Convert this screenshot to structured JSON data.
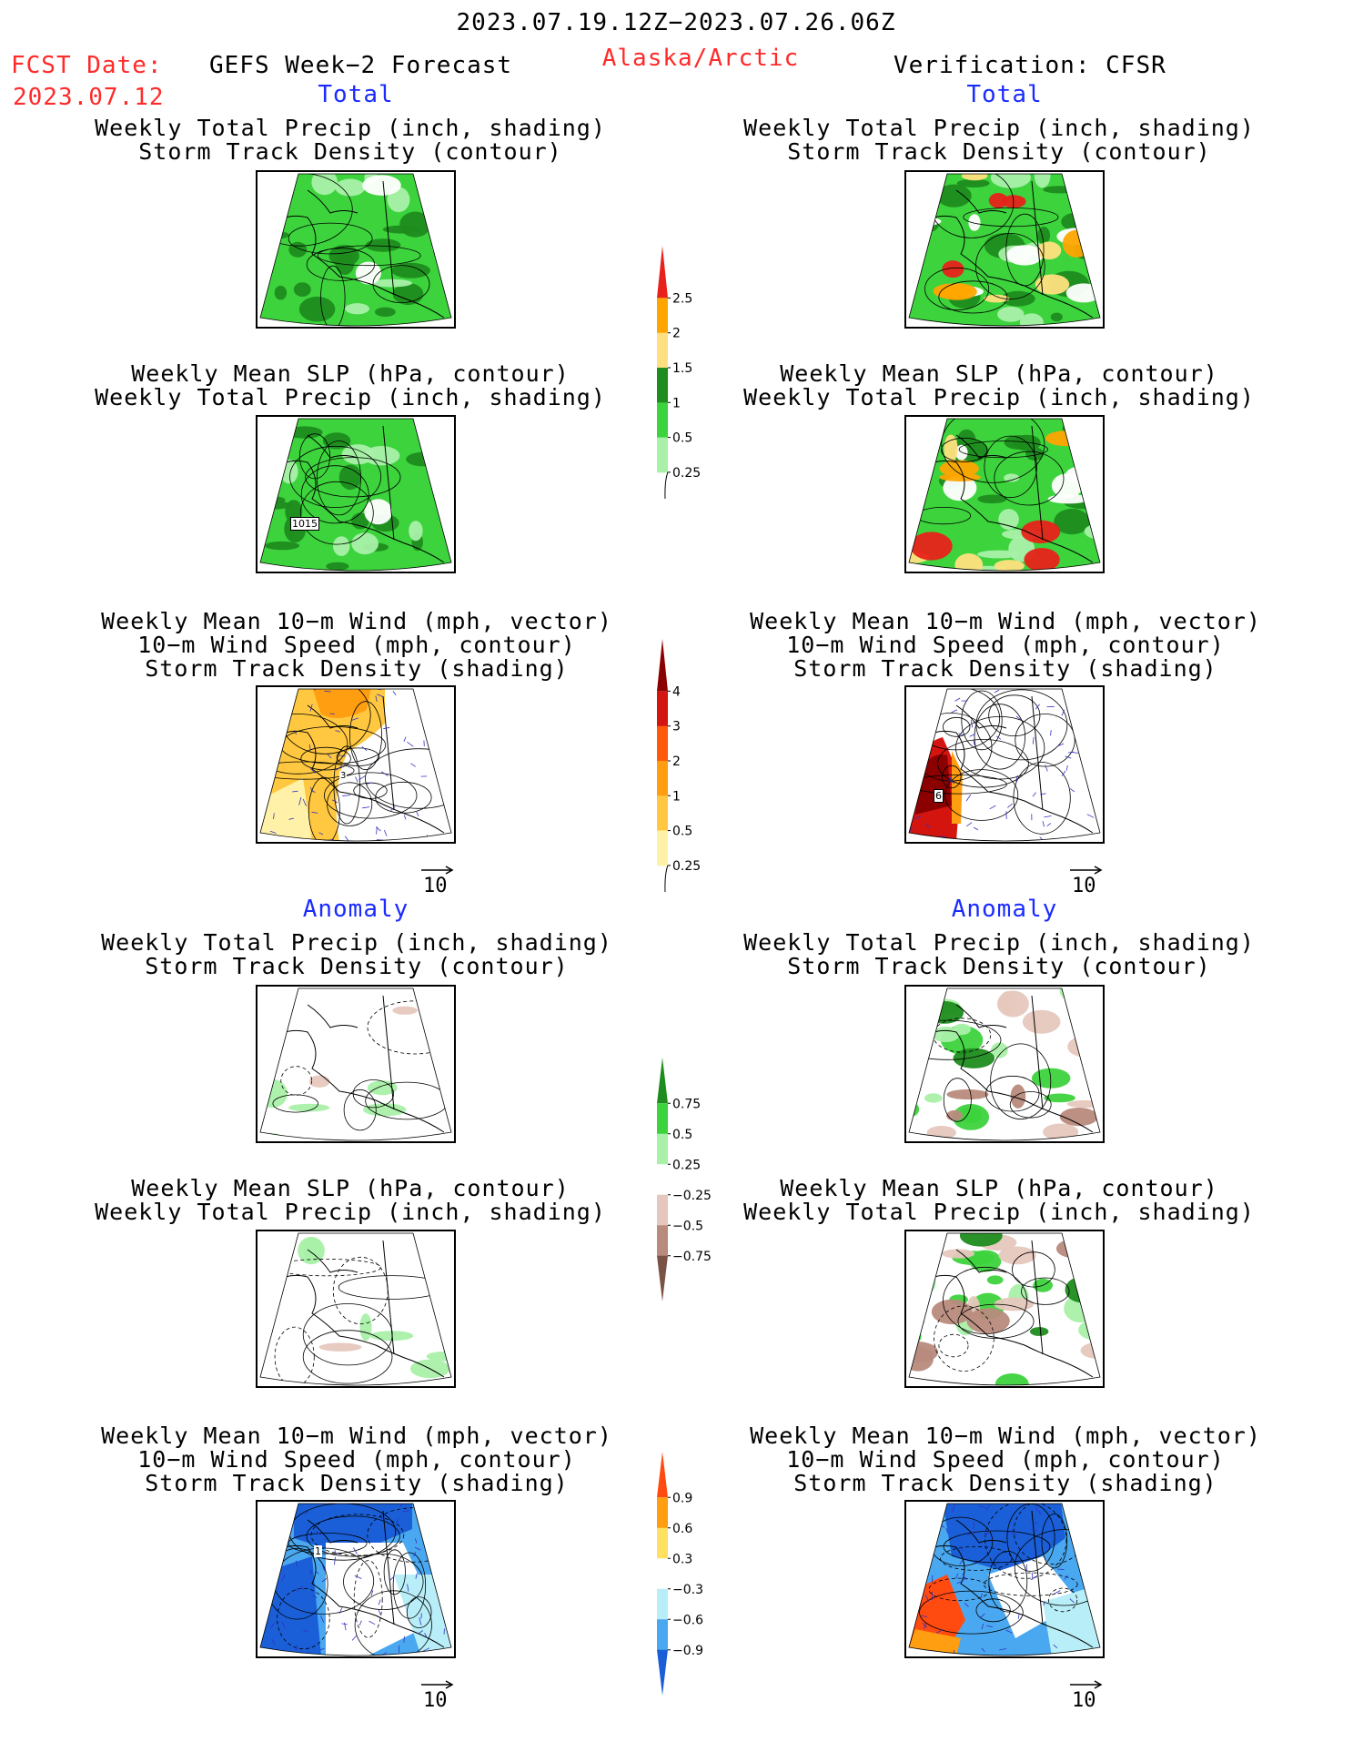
{
  "header": {
    "period": "2023.07.19.12Z−2023.07.26.06Z",
    "fcst_label": "FCST Date:",
    "fcst_date": "2023.07.12",
    "model": "GEFS Week−2 Forecast",
    "region": "Alaska/Arctic",
    "verification": "Verification: CFSR"
  },
  "sections": {
    "total": "Total",
    "anomaly": "Anomaly"
  },
  "titles": {
    "precip_track": [
      "Weekly Total Precip (inch, shading)",
      "Storm Track Density (contour)"
    ],
    "slp_precip": [
      "Weekly Mean SLP (hPa, contour)",
      "Weekly Total Precip (inch, shading)"
    ],
    "wind_track": [
      "Weekly Mean 10−m Wind (mph, vector)",
      "10−m Wind Speed (mph, contour)",
      "Storm Track Density (shading)"
    ]
  },
  "map_labels": {
    "slp_contour": "1015",
    "fc_track_label": "3",
    "obs_track_label": "6",
    "anom_wind_label": "1"
  },
  "vector_reference": "10",
  "colorbars": {
    "precip_total": {
      "labels": [
        "2.5",
        "2",
        "1.5",
        "1",
        "0.5",
        "0.25"
      ],
      "colors": [
        "#e8221a",
        "#ffa500",
        "#ffe080",
        "#1e8c1e",
        "#3dd33d",
        "#a9f0a9"
      ]
    },
    "track_total": {
      "labels": [
        "4",
        "3",
        "2",
        "1",
        "0.5",
        "0.25"
      ],
      "colors": [
        "#8b0000",
        "#d4140f",
        "#ff5a0a",
        "#ff9e10",
        "#ffc840",
        "#fff2a8"
      ]
    },
    "precip_anom": {
      "labels": [
        "0.75",
        "0.5",
        "0.25",
        "−0.25",
        "−0.5",
        "−0.75"
      ],
      "colors": [
        "#1e8c1e",
        "#3dd33d",
        "#a9f0a9",
        "#ffffff",
        "#e6c7bd",
        "#b88b7d",
        "#7a5346"
      ]
    },
    "wind_anom": {
      "labels": [
        "0.9",
        "0.6",
        "0.3",
        "−0.3",
        "−0.6",
        "−0.9"
      ],
      "colors": [
        "#ff4a10",
        "#ff9e10",
        "#ffe060",
        "#ffffff",
        "#b8eef8",
        "#4aa8f0",
        "#1a5fd8"
      ]
    }
  },
  "colors": {
    "red_text": "#ff2a2a",
    "blue_text": "#1a2bff"
  }
}
